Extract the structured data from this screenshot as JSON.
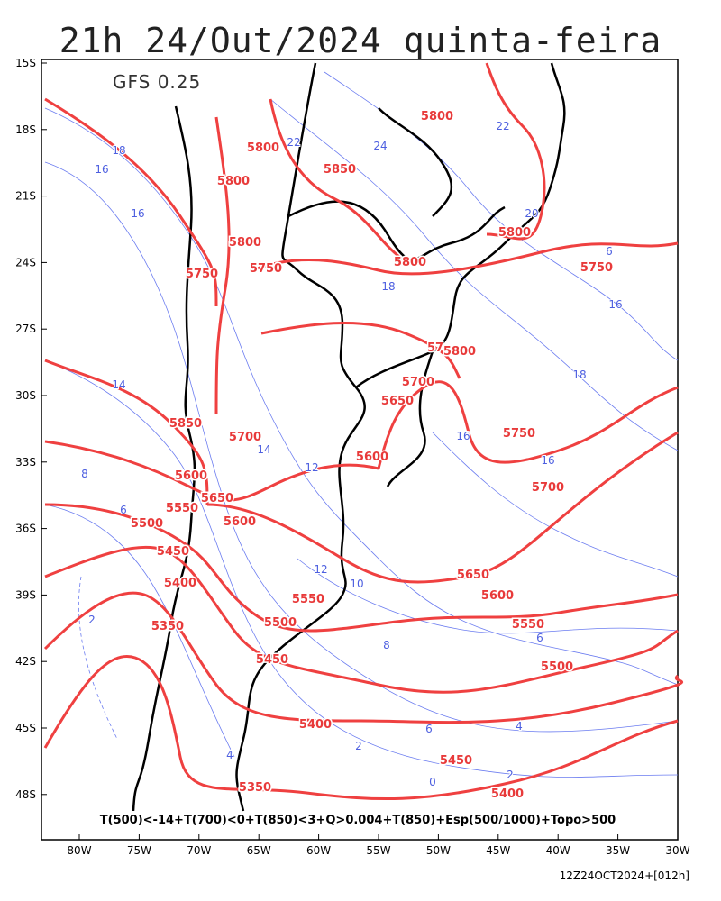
{
  "header": {
    "title": "21h 24/Out/2024 quinta-feira",
    "model": "GFS 0.25"
  },
  "axes": {
    "lat_labels": [
      "15S",
      "18S",
      "21S",
      "24S",
      "27S",
      "30S",
      "33S",
      "36S",
      "39S",
      "42S",
      "45S",
      "48S"
    ],
    "lon_labels": [
      "80W",
      "75W",
      "70W",
      "65W",
      "60W",
      "55W",
      "50W",
      "45W",
      "40W",
      "35W",
      "30W"
    ]
  },
  "legend": "T(500)<-14+T(700)<0+T(850)<3+Q>0.004+T(850)+Esp(500/1000)+Topo>500",
  "footer": "12Z24OCT2024+[012h]",
  "thickness_labels": [
    "5800",
    "5800",
    "5850",
    "5800",
    "5800",
    "5800",
    "5800",
    "5750",
    "5750",
    "5750",
    "57",
    "5800",
    "5700",
    "5650",
    "5750",
    "5850",
    "5700",
    "5600",
    "5600",
    "5700",
    "5650",
    "5550",
    "5500",
    "5600",
    "5450",
    "5650",
    "5400",
    "5600",
    "5550",
    "5550",
    "5500",
    "5350",
    "5500",
    "5450",
    "5400",
    "5450",
    "5350",
    "5400"
  ],
  "temperature_labels": [
    "18",
    "16",
    "16",
    "22",
    "24",
    "22",
    "20",
    "6",
    "16",
    "18",
    "18",
    "14",
    "16",
    "16",
    "14",
    "12",
    "8",
    "6",
    "12",
    "10",
    "8",
    "6",
    "4",
    "6",
    "2",
    "2",
    "2",
    "0",
    "4"
  ]
}
